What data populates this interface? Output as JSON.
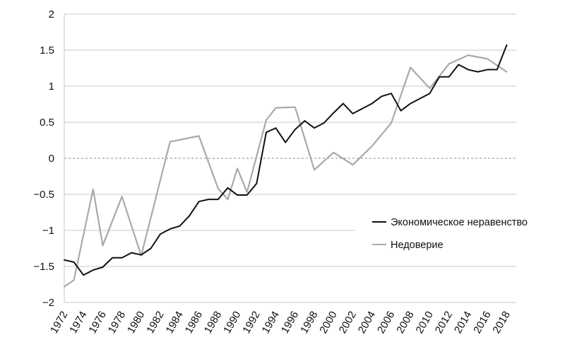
{
  "chart_data": {
    "type": "line",
    "title": "",
    "xlabel": "",
    "ylabel": "",
    "ylim": [
      -2,
      2
    ],
    "xlim": [
      1972,
      2019
    ],
    "yticks": [
      2,
      1.5,
      1,
      0.5,
      0,
      -0.5,
      -1,
      -1.5,
      -2
    ],
    "ytick_labels": [
      "2",
      "1.5",
      "1",
      "0.5",
      "0",
      "−0.5",
      "−1",
      "−1.5",
      "−2"
    ],
    "xticks": [
      1972,
      1974,
      1976,
      1978,
      1980,
      1982,
      1984,
      1986,
      1988,
      1990,
      1992,
      1994,
      1996,
      1998,
      2000,
      2002,
      2004,
      2006,
      2008,
      2010,
      2012,
      2014,
      2016,
      2018
    ],
    "grid": "horizontal",
    "legend_position": "right",
    "series": [
      {
        "name": "Экономическое неравенство",
        "color": "#111111",
        "points": [
          [
            1972,
            -1.41
          ],
          [
            1973,
            -1.44
          ],
          [
            1974,
            -1.62
          ],
          [
            1975,
            -1.55
          ],
          [
            1976,
            -1.51
          ],
          [
            1977,
            -1.38
          ],
          [
            1978,
            -1.38
          ],
          [
            1979,
            -1.31
          ],
          [
            1980,
            -1.34
          ],
          [
            1981,
            -1.25
          ],
          [
            1982,
            -1.05
          ],
          [
            1983,
            -0.98
          ],
          [
            1984,
            -0.94
          ],
          [
            1985,
            -0.8
          ],
          [
            1986,
            -0.6
          ],
          [
            1987,
            -0.57
          ],
          [
            1988,
            -0.57
          ],
          [
            1989,
            -0.41
          ],
          [
            1990,
            -0.51
          ],
          [
            1991,
            -0.51
          ],
          [
            1992,
            -0.35
          ],
          [
            1993,
            0.36
          ],
          [
            1994,
            0.42
          ],
          [
            1995,
            0.22
          ],
          [
            1996,
            0.4
          ],
          [
            1997,
            0.52
          ],
          [
            1998,
            0.42
          ],
          [
            1999,
            0.49
          ],
          [
            2000,
            0.63
          ],
          [
            2001,
            0.76
          ],
          [
            2002,
            0.62
          ],
          [
            2003,
            0.69
          ],
          [
            2004,
            0.76
          ],
          [
            2005,
            0.86
          ],
          [
            2006,
            0.9
          ],
          [
            2007,
            0.66
          ],
          [
            2008,
            0.76
          ],
          [
            2009,
            0.83
          ],
          [
            2010,
            0.9
          ],
          [
            2011,
            1.13
          ],
          [
            2012,
            1.13
          ],
          [
            2013,
            1.3
          ],
          [
            2014,
            1.23
          ],
          [
            2015,
            1.2
          ],
          [
            2016,
            1.23
          ],
          [
            2017,
            1.23
          ],
          [
            2018,
            1.57
          ]
        ]
      },
      {
        "name": "Недоверие",
        "color": "#a9a9a9",
        "points": [
          [
            1972,
            -1.78
          ],
          [
            1973,
            -1.69
          ],
          [
            1975,
            -0.43
          ],
          [
            1976,
            -1.21
          ],
          [
            1978,
            -0.53
          ],
          [
            1980,
            -1.35
          ],
          [
            1983,
            0.23
          ],
          [
            1986,
            0.31
          ],
          [
            1988,
            -0.42
          ],
          [
            1989,
            -0.57
          ],
          [
            1990,
            -0.14
          ],
          [
            1991,
            -0.47
          ],
          [
            1993,
            0.53
          ],
          [
            1994,
            0.7
          ],
          [
            1996,
            0.71
          ],
          [
            1998,
            -0.16
          ],
          [
            2000,
            0.08
          ],
          [
            2002,
            -0.09
          ],
          [
            2004,
            0.17
          ],
          [
            2006,
            0.49
          ],
          [
            2008,
            1.26
          ],
          [
            2010,
            0.97
          ],
          [
            2012,
            1.31
          ],
          [
            2014,
            1.43
          ],
          [
            2016,
            1.38
          ],
          [
            2018,
            1.2
          ]
        ]
      }
    ]
  }
}
